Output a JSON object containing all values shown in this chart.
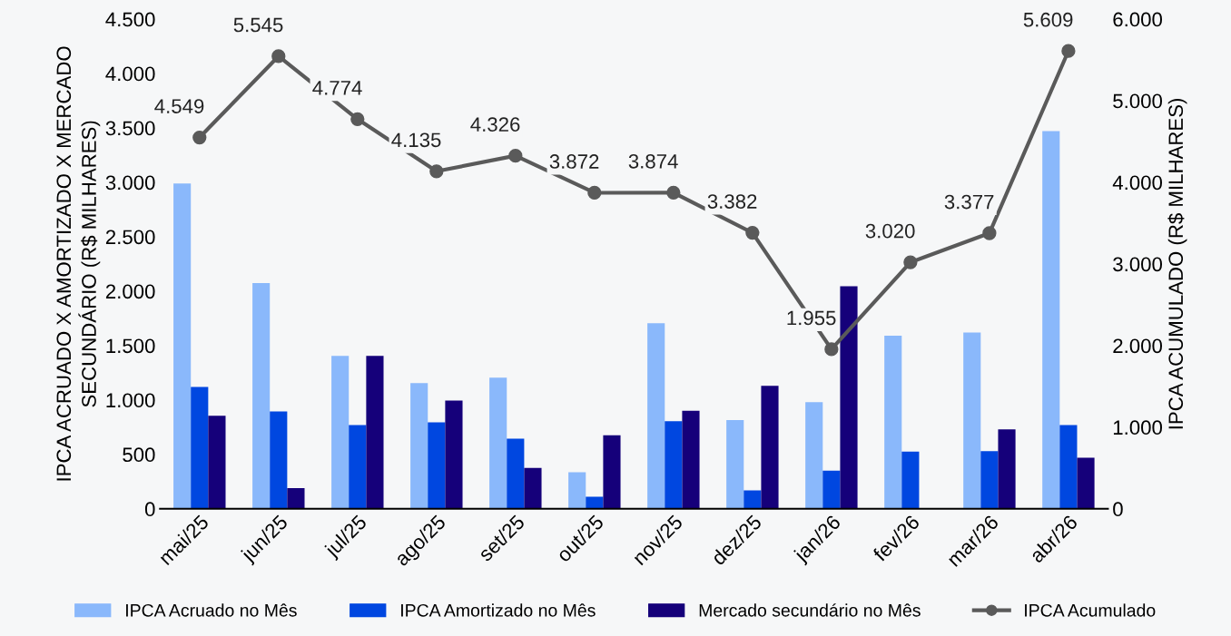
{
  "chart_data": {
    "type": "bar",
    "ylabel": "IPCA ACRUADO X AMORTIZADO X MERCADO\nSECUNDÁRIO (R$ MILHARES)",
    "y2label": "IPCA ACUMULADO (R$ MILHARES)",
    "categories": [
      "mai/25",
      "jun/25",
      "jul/25",
      "ago/25",
      "set/25",
      "out/25",
      "nov/25",
      "dez/25",
      "jan/26",
      "fev/26",
      "mar/26",
      "abr/26"
    ],
    "series": [
      {
        "name": "IPCA Acruado no Mês",
        "color": "#8ab8fb",
        "values": [
          2990,
          2075,
          1405,
          1155,
          1205,
          335,
          1705,
          815,
          980,
          1590,
          1620,
          3470
        ]
      },
      {
        "name": "IPCA Amortizado no Mês",
        "color": "#0047e0",
        "values": [
          1120,
          895,
          770,
          795,
          645,
          110,
          805,
          170,
          350,
          525,
          530,
          770
        ]
      },
      {
        "name": "Mercado secundário no Mês",
        "color": "#15007a",
        "values": [
          855,
          190,
          1405,
          995,
          375,
          675,
          900,
          1130,
          2045,
          0,
          730,
          470
        ]
      },
      {
        "name": "IPCA Acumulado",
        "type": "line",
        "axis": "y2",
        "color": "#5a5a5a",
        "marker": "circle",
        "line_style": "solid",
        "values": [
          4549,
          5545,
          4774,
          4135,
          4326,
          3872,
          3874,
          3382,
          1955,
          3020,
          3377,
          5609
        ],
        "value_labels": [
          "4.549",
          "5.545",
          "4.774",
          "4.135",
          "4.326",
          "3.872",
          "3.874",
          "3.382",
          "1.955",
          "3.020",
          "3.377",
          "5.609"
        ]
      }
    ],
    "ylim": [
      0,
      4500
    ],
    "yticks": [
      {
        "value": 0,
        "label": "0"
      },
      {
        "value": 500,
        "label": "500"
      },
      {
        "value": 1000,
        "label": "1.000"
      },
      {
        "value": 1500,
        "label": "1.500"
      },
      {
        "value": 2000,
        "label": "2.000"
      },
      {
        "value": 2500,
        "label": "2.500"
      },
      {
        "value": 3000,
        "label": "3.000"
      },
      {
        "value": 3500,
        "label": "3.500"
      },
      {
        "value": 4000,
        "label": "4.000"
      },
      {
        "value": 4500,
        "label": "4.500"
      }
    ],
    "y2lim": [
      0,
      6000
    ],
    "y2ticks": [
      {
        "value": 0,
        "label": "0"
      },
      {
        "value": 1000,
        "label": "1.000"
      },
      {
        "value": 2000,
        "label": "2.000"
      },
      {
        "value": 3000,
        "label": "3.000"
      },
      {
        "value": 4000,
        "label": "4.000"
      },
      {
        "value": 5000,
        "label": "5.000"
      },
      {
        "value": 6000,
        "label": "6.000"
      }
    ],
    "grid": false,
    "legend": "bottom"
  }
}
